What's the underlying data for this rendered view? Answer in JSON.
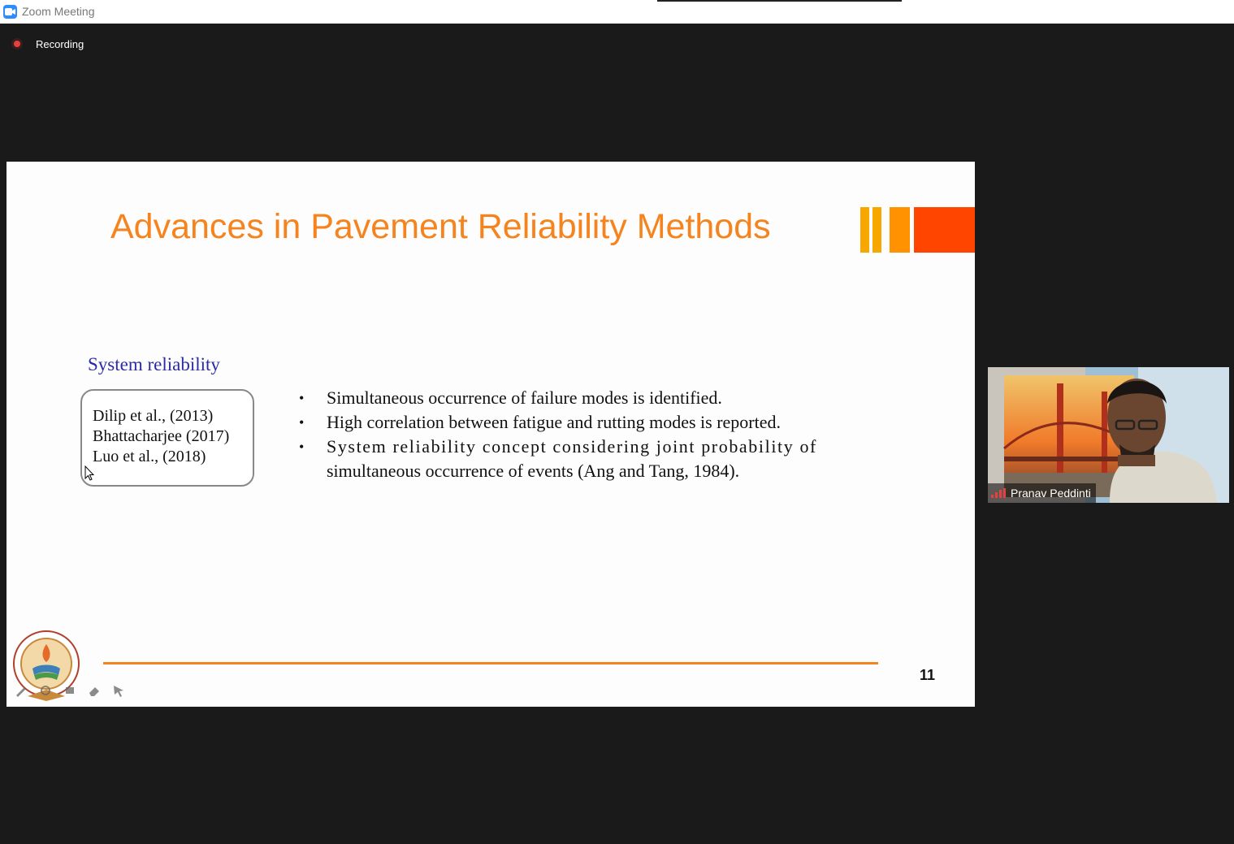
{
  "window": {
    "title": "Zoom Meeting"
  },
  "recording": {
    "label": "Recording"
  },
  "slide": {
    "title": "Advances in Pavement Reliability Methods",
    "section_heading": "System reliability",
    "references": [
      "Dilip et al., (2013)",
      "Bhattacharjee (2017)",
      "Luo et al., (2018)"
    ],
    "bullets": [
      "Simultaneous occurrence of failure modes is identified.",
      "High correlation between fatigue and rutting modes is reported.",
      "System reliability concept considering joint probability of",
      "simultaneous occurrence of events (Ang and Tang, 1984)."
    ],
    "bullet_symbol": "•",
    "page_number": "11",
    "colors": {
      "title": "#f5841f",
      "heading": "#2b2aa6",
      "accent_red": "#ff4500"
    }
  },
  "participant": {
    "name": "Pranav Peddinti"
  },
  "icons": {
    "app": "zoom-camera-icon",
    "recording": "record-dot-icon",
    "signal": "signal-bars-icon"
  }
}
